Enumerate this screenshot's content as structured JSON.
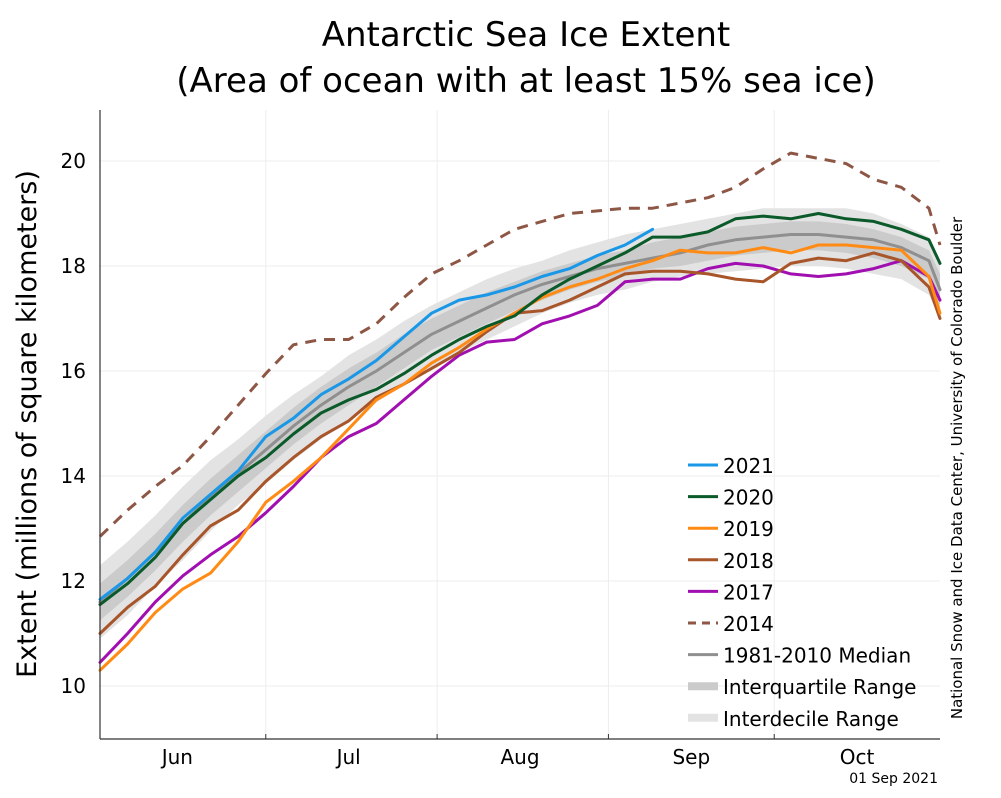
{
  "chart_data": {
    "type": "line",
    "title": "Antarctic Sea Ice Extent",
    "subtitle": "(Area of ocean with at least 15% sea ice)",
    "xlabel": "",
    "ylabel": "Extent (millions of square kilometers)",
    "credit": "National Snow and Ice Data Center, University of Colorado Boulder",
    "date_stamp": "01 Sep 2021",
    "ylim": [
      9,
      21
    ],
    "yticks": [
      10,
      12,
      14,
      16,
      18,
      20
    ],
    "ytick_labels": [
      "10",
      "12",
      "14",
      "16",
      "18",
      "20"
    ],
    "xlim_days": [
      0,
      152
    ],
    "x_unit": "days since 1 Jun",
    "month_ticks_days": [
      30,
      61,
      92,
      122
    ],
    "month_labels": [
      {
        "label": "Jun",
        "day": 14
      },
      {
        "label": "Jul",
        "day": 45
      },
      {
        "label": "Aug",
        "day": 76
      },
      {
        "label": "Sep",
        "day": 107
      },
      {
        "label": "Oct",
        "day": 137
      }
    ],
    "grid": true,
    "legend_position": "bottom-right",
    "x": [
      0,
      5,
      10,
      15,
      20,
      25,
      30,
      35,
      40,
      45,
      50,
      55,
      60,
      65,
      70,
      75,
      80,
      85,
      90,
      95,
      100,
      105,
      110,
      115,
      120,
      125,
      130,
      135,
      140,
      145,
      150,
      152
    ],
    "series": [
      {
        "name": "2021",
        "color": "#1a97e6",
        "dash": false,
        "values": [
          11.65,
          12.05,
          12.55,
          13.2,
          13.65,
          14.1,
          14.75,
          15.1,
          15.55,
          15.85,
          16.2,
          16.65,
          17.1,
          17.35,
          17.45,
          17.6,
          17.8,
          17.95,
          18.2,
          18.4,
          18.7,
          null,
          null,
          null,
          null,
          null,
          null,
          null,
          null,
          null,
          null,
          null
        ]
      },
      {
        "name": "2020",
        "color": "#0b5a2a",
        "dash": false,
        "values": [
          11.55,
          11.95,
          12.45,
          13.1,
          13.55,
          14.0,
          14.35,
          14.8,
          15.2,
          15.45,
          15.65,
          15.95,
          16.3,
          16.6,
          16.85,
          17.05,
          17.45,
          17.75,
          18.0,
          18.25,
          18.55,
          18.55,
          18.65,
          18.9,
          18.95,
          18.9,
          19.0,
          18.9,
          18.85,
          18.7,
          18.5,
          18.05
        ]
      },
      {
        "name": "2019",
        "color": "#ff8a14",
        "dash": false,
        "values": [
          10.3,
          10.8,
          11.4,
          11.85,
          12.15,
          12.75,
          13.5,
          13.9,
          14.35,
          14.9,
          15.45,
          15.75,
          16.15,
          16.45,
          16.8,
          17.1,
          17.4,
          17.6,
          17.75,
          17.95,
          18.1,
          18.3,
          18.25,
          18.25,
          18.35,
          18.25,
          18.4,
          18.4,
          18.35,
          18.3,
          17.8,
          17.1
        ]
      },
      {
        "name": "2018",
        "color": "#a8552a",
        "dash": false,
        "values": [
          11.0,
          11.5,
          11.9,
          12.5,
          13.05,
          13.35,
          13.9,
          14.35,
          14.75,
          15.05,
          15.5,
          15.75,
          16.05,
          16.35,
          16.75,
          17.1,
          17.15,
          17.35,
          17.6,
          17.85,
          17.9,
          17.9,
          17.85,
          17.75,
          17.7,
          18.05,
          18.15,
          18.1,
          18.25,
          18.1,
          17.6,
          17.0
        ]
      },
      {
        "name": "2017",
        "color": "#a10fb0",
        "dash": false,
        "values": [
          10.45,
          11.0,
          11.6,
          12.1,
          12.5,
          12.85,
          13.3,
          13.8,
          14.35,
          14.75,
          15.0,
          15.45,
          15.9,
          16.3,
          16.55,
          16.6,
          16.9,
          17.05,
          17.25,
          17.7,
          17.75,
          17.75,
          17.95,
          18.05,
          18.0,
          17.85,
          17.8,
          17.85,
          17.95,
          18.1,
          17.8,
          17.35
        ]
      },
      {
        "name": "2014",
        "color": "#8e5645",
        "dash": true,
        "values": [
          12.85,
          13.35,
          13.8,
          14.2,
          14.75,
          15.35,
          15.95,
          16.5,
          16.6,
          16.6,
          16.9,
          17.4,
          17.85,
          18.1,
          18.4,
          18.7,
          18.85,
          19.0,
          19.05,
          19.1,
          19.1,
          19.2,
          19.3,
          19.5,
          19.85,
          20.15,
          20.05,
          19.95,
          19.65,
          19.5,
          19.1,
          18.4
        ]
      },
      {
        "name": "1981-2010 Median",
        "color": "#8f8f8f",
        "dash": false,
        "values": [
          11.6,
          12.05,
          12.55,
          13.1,
          13.6,
          14.05,
          14.5,
          14.95,
          15.35,
          15.7,
          16.0,
          16.35,
          16.7,
          16.95,
          17.2,
          17.45,
          17.65,
          17.8,
          17.95,
          18.05,
          18.15,
          18.25,
          18.4,
          18.5,
          18.55,
          18.6,
          18.6,
          18.55,
          18.5,
          18.35,
          18.1,
          17.55
        ]
      }
    ],
    "bands": [
      {
        "name": "Interdecile Range",
        "color": "#e3e3e3",
        "low": [
          10.9,
          11.35,
          11.9,
          12.4,
          12.95,
          13.45,
          13.85,
          14.3,
          14.7,
          15.05,
          15.4,
          15.75,
          16.05,
          16.35,
          16.6,
          16.85,
          17.1,
          17.3,
          17.45,
          17.55,
          17.7,
          17.8,
          17.85,
          17.9,
          17.95,
          18.0,
          18.0,
          17.95,
          17.85,
          17.75,
          17.45,
          17.0
        ],
        "high": [
          12.3,
          12.75,
          13.25,
          13.8,
          14.3,
          14.7,
          15.15,
          15.55,
          15.9,
          16.3,
          16.6,
          16.95,
          17.25,
          17.5,
          17.75,
          17.95,
          18.1,
          18.3,
          18.45,
          18.6,
          18.7,
          18.8,
          18.9,
          19.0,
          19.1,
          19.1,
          19.1,
          19.1,
          19.0,
          18.8,
          18.55,
          18.1
        ]
      },
      {
        "name": "Interquartile Range",
        "color": "#cbcbcb",
        "low": [
          11.25,
          11.7,
          12.2,
          12.75,
          13.25,
          13.7,
          14.15,
          14.6,
          15.0,
          15.35,
          15.7,
          16.05,
          16.4,
          16.65,
          16.9,
          17.15,
          17.35,
          17.55,
          17.7,
          17.8,
          17.95,
          18.0,
          18.1,
          18.2,
          18.25,
          18.3,
          18.3,
          18.25,
          18.15,
          18.0,
          17.75,
          17.25
        ],
        "high": [
          11.95,
          12.4,
          12.9,
          13.45,
          13.95,
          14.4,
          14.85,
          15.3,
          15.7,
          16.05,
          16.35,
          16.7,
          17.0,
          17.25,
          17.5,
          17.7,
          17.9,
          18.05,
          18.2,
          18.3,
          18.45,
          18.55,
          18.65,
          18.75,
          18.8,
          18.85,
          18.85,
          18.8,
          18.7,
          18.55,
          18.3,
          17.85
        ]
      }
    ]
  }
}
